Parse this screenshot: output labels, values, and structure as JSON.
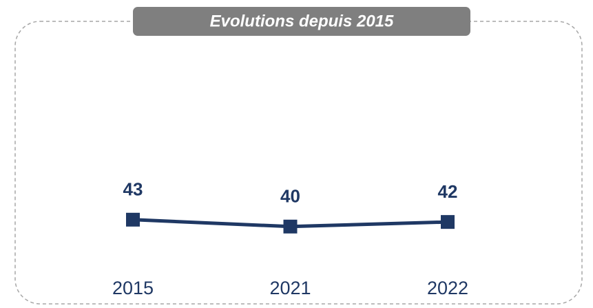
{
  "chart_data": {
    "type": "line",
    "title": "Evolutions depuis 2015",
    "categories": [
      "2015",
      "2021",
      "2022"
    ],
    "values": [
      43,
      40,
      42
    ],
    "color": "#1f3864",
    "ylim": [
      0,
      100
    ]
  }
}
